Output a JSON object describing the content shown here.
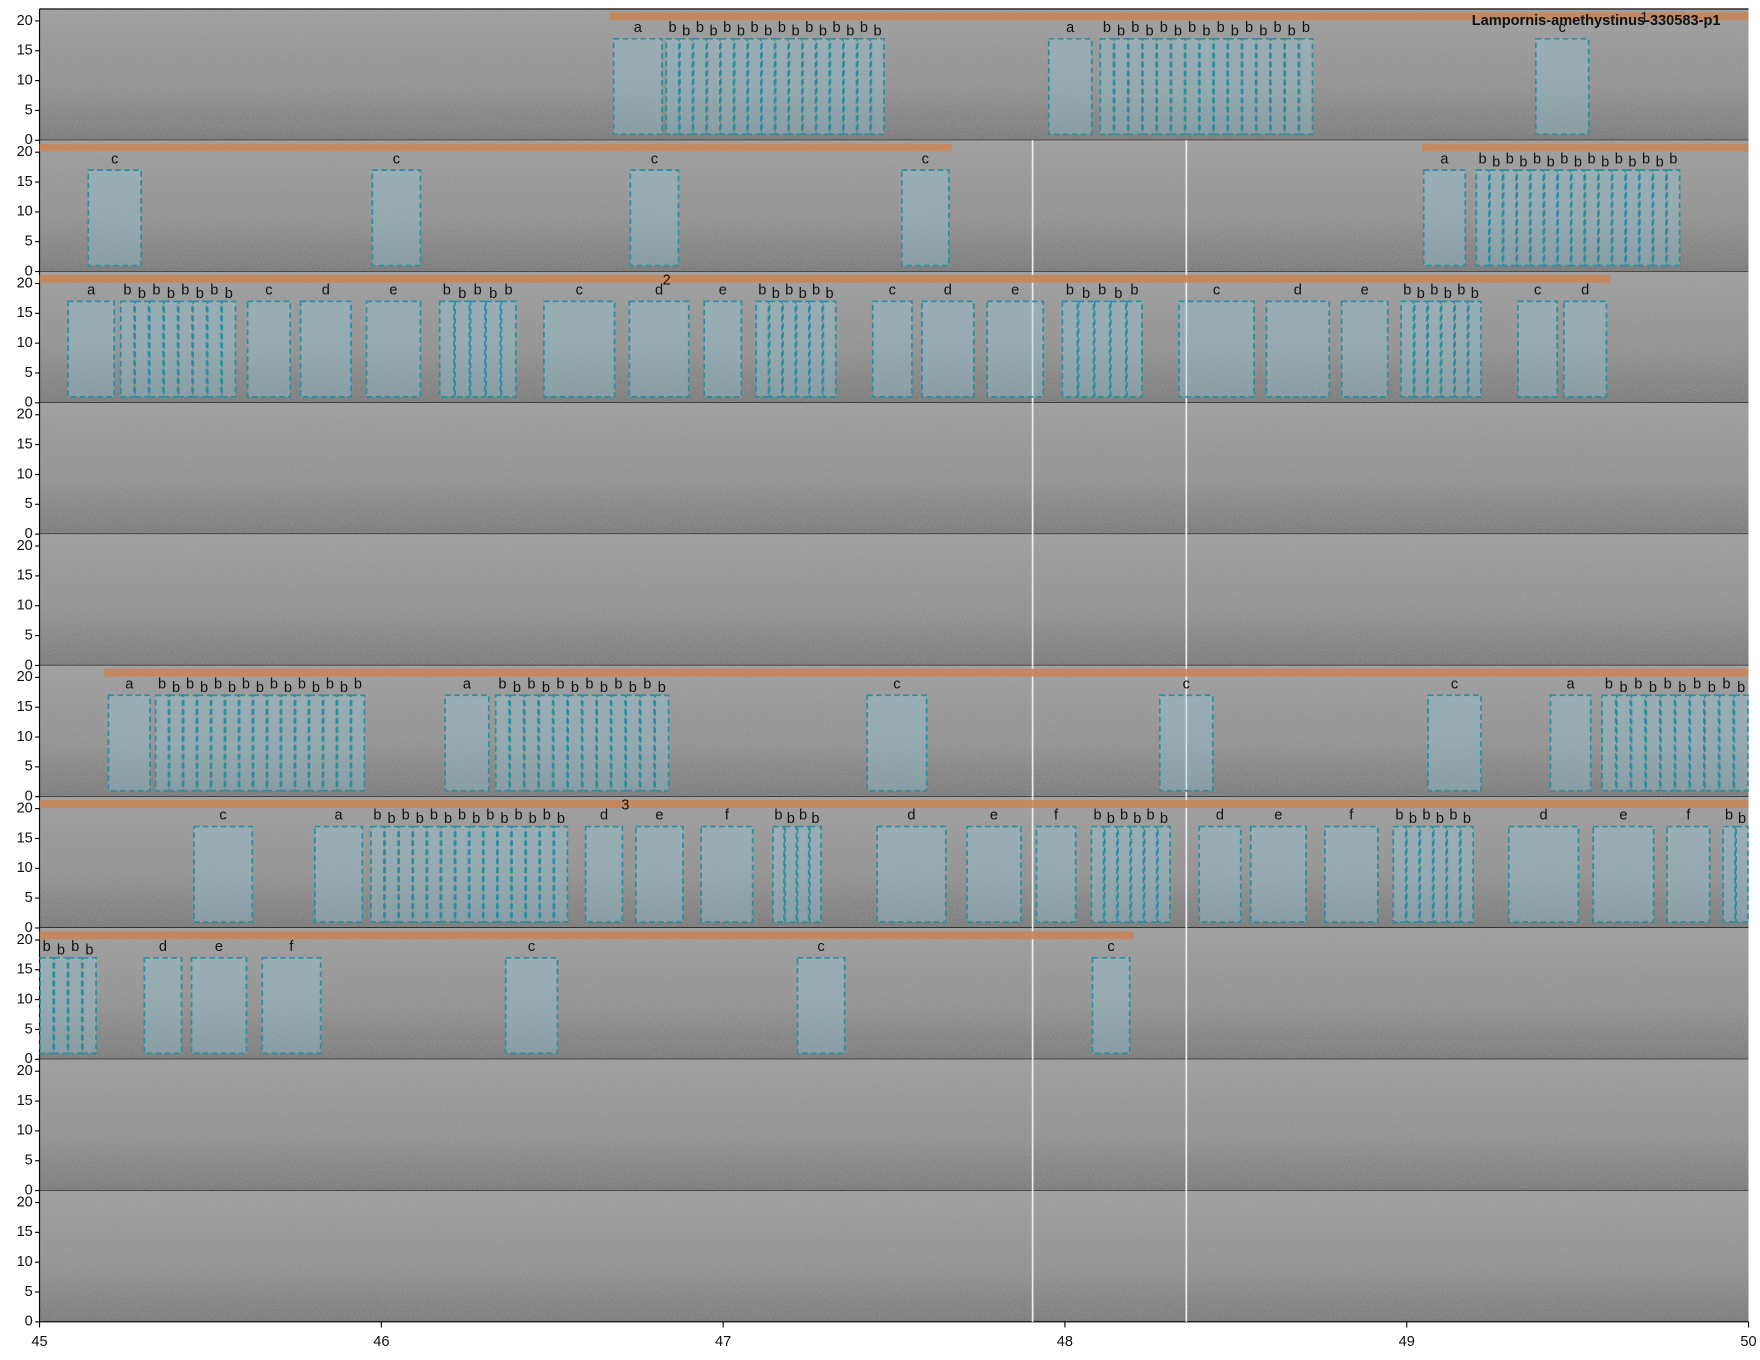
{
  "chart_data": {
    "type": "spectrogram",
    "title": "Lampornis-amethystinus-330583-p1",
    "xlim": [
      45,
      50
    ],
    "xticks": [
      45,
      46,
      47,
      48,
      49,
      50
    ],
    "ylim": [
      0,
      22
    ],
    "yticks": [
      0,
      5,
      10,
      15,
      20
    ],
    "box_color": "#2a8fa0",
    "song_color": "#c8855a",
    "rows": [
      {
        "songs": [
          [
            46.668,
            50
          ]
        ],
        "phrases": [
          {
            "label": "1",
            "x": 49.695
          }
        ],
        "boxes": [
          {
            "labels": [
              "a"
            ],
            "x": [
              46.678,
              46.823
            ]
          },
          {
            "labels": [
              "b",
              "b",
              "b",
              "b",
              "b",
              "b",
              "b",
              "b",
              "b",
              "b",
              "b",
              "b",
              "b",
              "b",
              "b",
              "b"
            ],
            "x": [
              46.832,
              47.472
            ]
          },
          {
            "labels": [
              "a"
            ],
            "x": [
              47.951,
              48.08
            ]
          },
          {
            "labels": [
              "b",
              "b",
              "b",
              "b",
              "b",
              "b",
              "b",
              "b",
              "b",
              "b",
              "b",
              "b",
              "b",
              "b",
              "b"
            ],
            "x": [
              48.102,
              48.726
            ]
          },
          {
            "labels": [
              "c"
            ],
            "x": [
              49.376,
              49.534
            ]
          }
        ]
      },
      {
        "songs": [
          [
            45,
            47.669
          ],
          [
            49.045,
            50
          ]
        ],
        "phrases": [],
        "boxes": [
          {
            "labels": [
              "c"
            ],
            "x": [
              45.141,
              45.299
            ]
          },
          {
            "labels": [
              "c"
            ],
            "x": [
              45.972,
              46.116
            ]
          },
          {
            "labels": [
              "c"
            ],
            "x": [
              46.727,
              46.871
            ]
          },
          {
            "labels": [
              "c"
            ],
            "x": [
              47.521,
              47.662
            ]
          },
          {
            "labels": [
              "a"
            ],
            "x": [
              49.048,
              49.173
            ]
          },
          {
            "labels": [
              "b",
              "b",
              "b",
              "b",
              "b",
              "b",
              "b",
              "b",
              "b",
              "b",
              "b",
              "b",
              "b",
              "b",
              "b"
            ],
            "x": [
              49.202,
              49.8
            ]
          }
        ]
      },
      {
        "songs": [
          [
            45,
            49.596
          ]
        ],
        "phrases": [
          {
            "label": "2",
            "x": 46.835
          }
        ],
        "boxes": [
          {
            "labels": [
              "a"
            ],
            "x": [
              45.082,
              45.22
            ]
          },
          {
            "labels": [
              "b",
              "b",
              "b",
              "b",
              "b",
              "b",
              "b",
              "b"
            ],
            "x": [
              45.236,
              45.575
            ]
          },
          {
            "labels": [
              "c"
            ],
            "x": [
              45.607,
              45.735
            ]
          },
          {
            "labels": [
              "d"
            ],
            "x": [
              45.762,
              45.913
            ]
          },
          {
            "labels": [
              "e"
            ],
            "x": [
              45.955,
              46.116
            ]
          },
          {
            "labels": [
              "b",
              "b",
              "b",
              "b",
              "b"
            ],
            "x": [
              46.169,
              46.395
            ]
          },
          {
            "labels": [
              "c"
            ],
            "x": [
              46.474,
              46.684
            ]
          },
          {
            "labels": [
              "d"
            ],
            "x": [
              46.724,
              46.901
            ]
          },
          {
            "labels": [
              "e"
            ],
            "x": [
              46.943,
              47.055
            ]
          },
          {
            "labels": [
              "b",
              "b",
              "b",
              "b",
              "b",
              "b"
            ],
            "x": [
              47.095,
              47.331
            ]
          },
          {
            "labels": [
              "c"
            ],
            "x": [
              47.436,
              47.554
            ]
          },
          {
            "labels": [
              "d"
            ],
            "x": [
              47.58,
              47.735
            ]
          },
          {
            "labels": [
              "e"
            ],
            "x": [
              47.771,
              47.938
            ]
          },
          {
            "labels": [
              "b",
              "b",
              "b",
              "b",
              "b"
            ],
            "x": [
              47.991,
              48.227
            ]
          },
          {
            "labels": [
              "c"
            ],
            "x": [
              48.332,
              48.555
            ]
          },
          {
            "labels": [
              "d"
            ],
            "x": [
              48.588,
              48.775
            ]
          },
          {
            "labels": [
              "e"
            ],
            "x": [
              48.808,
              48.946
            ]
          },
          {
            "labels": [
              "b",
              "b",
              "b",
              "b",
              "b",
              "b"
            ],
            "x": [
              48.982,
              49.219
            ]
          },
          {
            "labels": [
              "c"
            ],
            "x": [
              49.324,
              49.442
            ]
          },
          {
            "labels": [
              "d"
            ],
            "x": [
              49.458,
              49.586
            ]
          }
        ]
      },
      {
        "songs": [],
        "phrases": [],
        "boxes": []
      },
      {
        "songs": [],
        "phrases": [],
        "boxes": []
      },
      {
        "songs": [
          [
            45.19,
            50
          ]
        ],
        "phrases": [],
        "boxes": [
          {
            "labels": [
              "a"
            ],
            "x": [
              45.2,
              45.325
            ]
          },
          {
            "labels": [
              "b",
              "b",
              "b",
              "b",
              "b",
              "b",
              "b",
              "b",
              "b",
              "b",
              "b",
              "b",
              "b",
              "b",
              "b"
            ],
            "x": [
              45.338,
              45.952
            ]
          },
          {
            "labels": [
              "a"
            ],
            "x": [
              46.185,
              46.316
            ]
          },
          {
            "labels": [
              "b",
              "b",
              "b",
              "b",
              "b",
              "b",
              "b",
              "b",
              "b",
              "b",
              "b",
              "b"
            ],
            "x": [
              46.333,
              46.842
            ]
          },
          {
            "labels": [
              "c"
            ],
            "x": [
              47.42,
              47.597
            ]
          },
          {
            "labels": [
              "c"
            ],
            "x": [
              48.276,
              48.434
            ]
          },
          {
            "labels": [
              "c"
            ],
            "x": [
              49.061,
              49.219
            ]
          },
          {
            "labels": [
              "a"
            ],
            "x": [
              49.419,
              49.54
            ]
          },
          {
            "labels": [
              "b",
              "b",
              "b",
              "b",
              "b",
              "b",
              "b",
              "b",
              "b",
              "b"
            ],
            "x": [
              49.57,
              50
            ]
          }
        ]
      },
      {
        "songs": [
          [
            45,
            50
          ]
        ],
        "phrases": [
          {
            "label": "3",
            "x": 46.714
          }
        ],
        "boxes": [
          {
            "labels": [
              "c"
            ],
            "x": [
              45.45,
              45.624
            ]
          },
          {
            "labels": [
              "a"
            ],
            "x": [
              45.804,
              45.946
            ]
          },
          {
            "labels": [
              "b",
              "b",
              "b",
              "b",
              "b",
              "b",
              "b",
              "b",
              "b",
              "b",
              "b",
              "b",
              "b",
              "b"
            ],
            "x": [
              45.968,
              46.546
            ]
          },
          {
            "labels": [
              "d"
            ],
            "x": [
              46.596,
              46.707
            ]
          },
          {
            "labels": [
              "e"
            ],
            "x": [
              46.743,
              46.884
            ]
          },
          {
            "labels": [
              "f"
            ],
            "x": [
              46.934,
              47.088
            ]
          },
          {
            "labels": [
              "b",
              "b",
              "b",
              "b"
            ],
            "x": [
              47.144,
              47.288
            ]
          },
          {
            "labels": [
              "d"
            ],
            "x": [
              47.449,
              47.653
            ]
          },
          {
            "labels": [
              "e"
            ],
            "x": [
              47.712,
              47.873
            ]
          },
          {
            "labels": [
              "f"
            ],
            "x": [
              47.915,
              48.033
            ]
          },
          {
            "labels": [
              "b",
              "b",
              "b",
              "b",
              "b",
              "b"
            ],
            "x": [
              48.076,
              48.309
            ]
          },
          {
            "labels": [
              "d"
            ],
            "x": [
              48.391,
              48.516
            ]
          },
          {
            "labels": [
              "e"
            ],
            "x": [
              48.542,
              48.707
            ]
          },
          {
            "labels": [
              "f"
            ],
            "x": [
              48.759,
              48.917
            ]
          },
          {
            "labels": [
              "b",
              "b",
              "b",
              "b",
              "b",
              "b"
            ],
            "x": [
              48.959,
              49.196
            ]
          },
          {
            "labels": [
              "d"
            ],
            "x": [
              49.297,
              49.504
            ]
          },
          {
            "labels": [
              "e"
            ],
            "x": [
              49.544,
              49.724
            ]
          },
          {
            "labels": [
              "f"
            ],
            "x": [
              49.76,
              49.888
            ]
          },
          {
            "labels": [
              "b",
              "b"
            ],
            "x": [
              49.924,
              50
            ]
          }
        ]
      },
      {
        "songs": [
          [
            45,
            48.201
          ]
        ],
        "phrases": [],
        "boxes": [
          {
            "labels": [
              "b",
              "b",
              "b",
              "b"
            ],
            "x": [
              45,
              45.167
            ]
          },
          {
            "labels": [
              "d"
            ],
            "x": [
              45.305,
              45.417
            ]
          },
          {
            "labels": [
              "e"
            ],
            "x": [
              45.443,
              45.607
            ]
          },
          {
            "labels": [
              "f"
            ],
            "x": [
              45.65,
              45.824
            ]
          },
          {
            "labels": [
              "c"
            ],
            "x": [
              46.362,
              46.517
            ]
          },
          {
            "labels": [
              "c"
            ],
            "x": [
              47.216,
              47.357
            ]
          },
          {
            "labels": [
              "c"
            ],
            "x": [
              48.079,
              48.191
            ]
          }
        ]
      },
      {
        "songs": [],
        "phrases": [],
        "boxes": []
      },
      {
        "songs": [],
        "phrases": [],
        "boxes": []
      }
    ]
  }
}
